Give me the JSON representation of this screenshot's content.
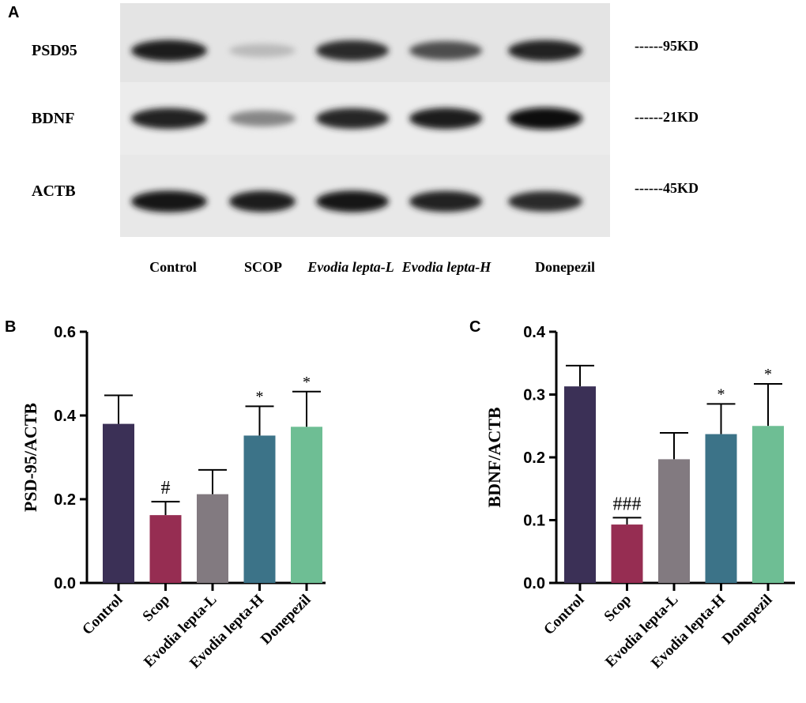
{
  "panel_labels": {
    "a": "A",
    "b": "B",
    "c": "C"
  },
  "blot": {
    "rows": [
      {
        "label": "PSD95",
        "marker": "------95KD",
        "intensities": [
          0.92,
          0.22,
          0.85,
          0.7,
          0.9
        ]
      },
      {
        "label": "BDNF",
        "marker": "------21KD",
        "intensities": [
          0.9,
          0.45,
          0.88,
          0.92,
          0.98
        ]
      },
      {
        "label": "ACTB",
        "marker": "------45KD",
        "intensities": [
          0.95,
          0.92,
          0.94,
          0.9,
          0.85
        ]
      }
    ],
    "lanes": [
      {
        "label": "Control",
        "italic": false
      },
      {
        "label": "SCOP",
        "italic": false
      },
      {
        "label": "Evodia lepta-L",
        "italic": true
      },
      {
        "label": "Evodia lepta-H",
        "italic": true
      },
      {
        "label": "Donepezil",
        "italic": true
      }
    ]
  },
  "chart_data": [
    {
      "type": "bar",
      "panel": "B",
      "categories": [
        "Control",
        "Scop",
        "Evodia lepta-L",
        "Evodia lepta-H",
        "Donepezil"
      ],
      "values": [
        0.38,
        0.162,
        0.212,
        0.352,
        0.373
      ],
      "errors": [
        0.068,
        0.032,
        0.058,
        0.07,
        0.084
      ],
      "annotations": [
        "",
        "#",
        "",
        "*",
        "*"
      ],
      "ylabel": "PSD-95/ACTB",
      "ylim": [
        0,
        0.6
      ],
      "yticks": [
        "0.0",
        "0.2",
        "0.4",
        "0.6"
      ],
      "colors": [
        "#3b3056",
        "#962d52",
        "#827a80",
        "#3c7388",
        "#6ebe94"
      ]
    },
    {
      "type": "bar",
      "panel": "C",
      "categories": [
        "Control",
        "Scop",
        "Evodia lepta-L",
        "Evodia lepta-H",
        "Donepezil"
      ],
      "values": [
        0.313,
        0.093,
        0.197,
        0.237,
        0.25
      ],
      "errors": [
        0.033,
        0.011,
        0.042,
        0.048,
        0.067
      ],
      "annotations": [
        "",
        "###",
        "",
        "*",
        "*"
      ],
      "ylabel": "BDNF/ACTB",
      "ylim": [
        0,
        0.4
      ],
      "yticks": [
        "0.0",
        "0.1",
        "0.2",
        "0.3",
        "0.4"
      ],
      "colors": [
        "#3b3056",
        "#962d52",
        "#827a80",
        "#3c7388",
        "#6ebe94"
      ]
    }
  ]
}
